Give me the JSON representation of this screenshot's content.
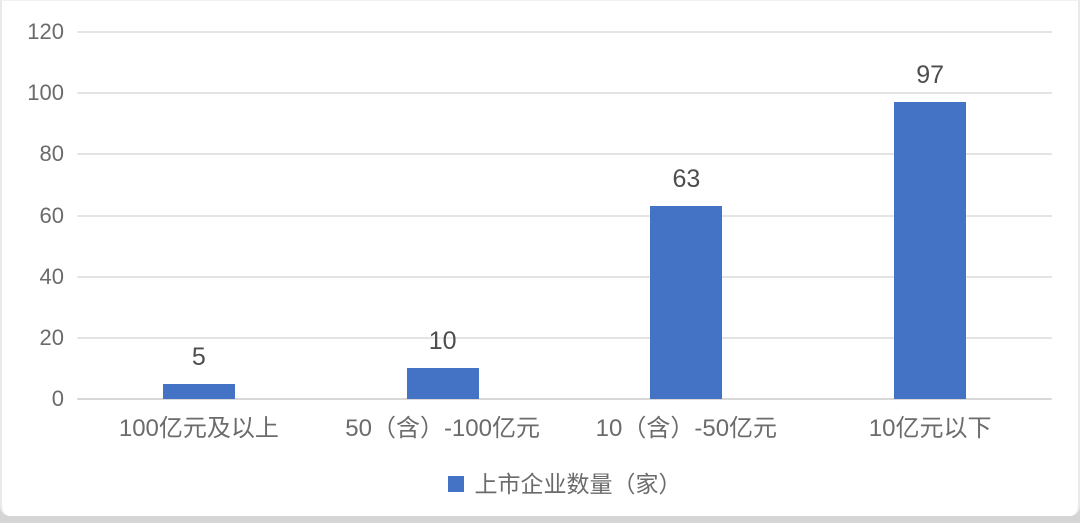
{
  "chart_data": {
    "type": "bar",
    "categories": [
      "100亿元及以上",
      "50（含）-100亿元",
      "10（含）-50亿元",
      "10亿元以下"
    ],
    "series": [
      {
        "name": "上市企业数量（家）",
        "values": [
          5,
          10,
          63,
          97
        ]
      }
    ],
    "title": "",
    "xlabel": "",
    "ylabel": "",
    "ylim": [
      0,
      120
    ],
    "yticks": [
      0,
      20,
      40,
      60,
      80,
      100,
      120
    ],
    "grid": true,
    "data_labels": true,
    "legend_position": "bottom",
    "bar_color": "#4472C4"
  },
  "colors": {
    "bar": "#4472C4",
    "gridline": "#e4e4e4",
    "baseline": "#d8d8d8",
    "axis_text": "#6b6b6b",
    "data_label_text": "#4d4d4d",
    "card_background": "#ffffff",
    "bottom_strip": "#d5d5d5"
  }
}
